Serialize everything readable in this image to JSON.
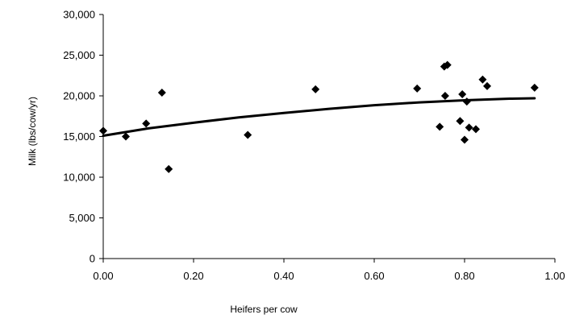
{
  "chart_data": {
    "type": "scatter",
    "title": "",
    "xlabel": "Heifers per cow",
    "ylabel": "Milk (lbs/cow/yr)",
    "xlim": [
      0,
      1
    ],
    "ylim": [
      0,
      30000
    ],
    "xticks": [
      0,
      0.2,
      0.4,
      0.6,
      0.8,
      1.0
    ],
    "xtick_labels": [
      "0.00",
      "0.20",
      "0.40",
      "0.60",
      "0.80",
      "1.00"
    ],
    "yticks": [
      0,
      5000,
      10000,
      15000,
      20000,
      25000,
      30000
    ],
    "ytick_labels": [
      "0",
      "5,000",
      "10,000",
      "15,000",
      "20,000",
      "25,000",
      "30,000"
    ],
    "grid": false,
    "legend": "none",
    "marker": "diamond",
    "marker_color": "#000000",
    "points": [
      {
        "x": 0.0,
        "y": 15700
      },
      {
        "x": 0.05,
        "y": 15000
      },
      {
        "x": 0.095,
        "y": 16600
      },
      {
        "x": 0.13,
        "y": 20400
      },
      {
        "x": 0.145,
        "y": 11000
      },
      {
        "x": 0.32,
        "y": 15200
      },
      {
        "x": 0.47,
        "y": 20800
      },
      {
        "x": 0.695,
        "y": 20900
      },
      {
        "x": 0.745,
        "y": 16200
      },
      {
        "x": 0.755,
        "y": 23600
      },
      {
        "x": 0.762,
        "y": 23800
      },
      {
        "x": 0.757,
        "y": 20000
      },
      {
        "x": 0.79,
        "y": 16900
      },
      {
        "x": 0.795,
        "y": 20200
      },
      {
        "x": 0.8,
        "y": 14600
      },
      {
        "x": 0.805,
        "y": 19300
      },
      {
        "x": 0.81,
        "y": 16100
      },
      {
        "x": 0.825,
        "y": 15900
      },
      {
        "x": 0.84,
        "y": 22000
      },
      {
        "x": 0.85,
        "y": 21200
      },
      {
        "x": 0.955,
        "y": 21000
      }
    ],
    "trend_line": {
      "type": "polynomial",
      "color": "#000000",
      "points": [
        {
          "x": 0.0,
          "y": 15100
        },
        {
          "x": 0.1,
          "y": 16000
        },
        {
          "x": 0.2,
          "y": 16700
        },
        {
          "x": 0.3,
          "y": 17350
        },
        {
          "x": 0.4,
          "y": 17900
        },
        {
          "x": 0.5,
          "y": 18400
        },
        {
          "x": 0.6,
          "y": 18850
        },
        {
          "x": 0.7,
          "y": 19200
        },
        {
          "x": 0.8,
          "y": 19450
        },
        {
          "x": 0.9,
          "y": 19650
        },
        {
          "x": 0.955,
          "y": 19700
        }
      ]
    }
  }
}
